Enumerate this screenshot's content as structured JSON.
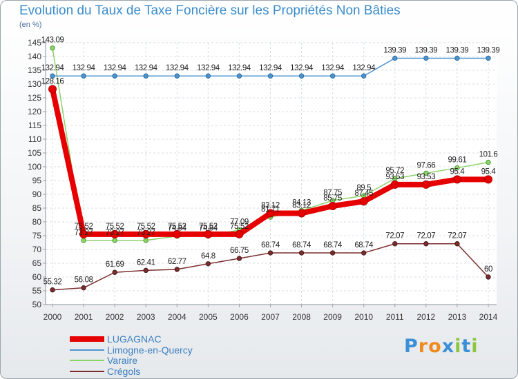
{
  "chart_data": {
    "type": "line",
    "title": "Evolution du Taux de Taxe Foncière sur les Propriétés Non Bâties",
    "ylabel": "(en %)",
    "xlabel": "",
    "ylim": [
      50,
      145
    ],
    "yticks": [
      50,
      55,
      60,
      65,
      70,
      75,
      80,
      85,
      90,
      95,
      100,
      105,
      110,
      115,
      120,
      125,
      130,
      135,
      140,
      145
    ],
    "categories": [
      "2000",
      "2001",
      "2002",
      "2003",
      "2004",
      "2005",
      "2006",
      "2007",
      "2008",
      "2009",
      "2010",
      "2011",
      "2012",
      "2013",
      "2014"
    ],
    "series": [
      {
        "name": "LUGAGNAC",
        "color": "#e60000",
        "values": [
          128.16,
          75.52,
          75.52,
          75.52,
          75.52,
          75.52,
          75.52,
          83.12,
          83.12,
          85.75,
          87.45,
          93.53,
          93.53,
          95.4,
          95.4
        ],
        "labels": [
          "128.16",
          "75.52",
          "75.52",
          "75.52",
          "75.52",
          "75.52",
          "75.52",
          "83.12",
          "83.12",
          "85.75",
          "87.45",
          "93.53",
          "93.53",
          "95.4",
          "95.4"
        ]
      },
      {
        "name": "Limogne-en-Quercy",
        "color": "#4f94cd",
        "values": [
          132.94,
          132.94,
          132.94,
          132.94,
          132.94,
          132.94,
          132.94,
          132.94,
          132.94,
          132.94,
          132.94,
          139.39,
          139.39,
          139.39,
          139.39
        ],
        "labels": [
          "132.94",
          "132.94",
          "132.94",
          "132.94",
          "132.94",
          "132.94",
          "132.94",
          "132.94",
          "132.94",
          "132.94",
          "132.94",
          "139.39",
          "139.39",
          "139.39",
          "139.39"
        ]
      },
      {
        "name": "Varaire",
        "color": "#8cd26a",
        "values": [
          143.09,
          73.27,
          73.27,
          73.27,
          74.84,
          74.84,
          77.09,
          81.71,
          84.13,
          87.75,
          89.5,
          95.72,
          97.66,
          99.61,
          101.6
        ],
        "labels": [
          "143.09",
          "73.27",
          "73.27",
          "73.27",
          "74.84",
          "74.84",
          "77.09",
          "81.71",
          "84.13",
          "87.75",
          "89.5",
          "95.72",
          "97.66",
          "99.61",
          "101.6"
        ]
      },
      {
        "name": "Crégols",
        "color": "#7b2d2d",
        "values": [
          55.32,
          56.08,
          61.69,
          62.41,
          62.77,
          64.8,
          66.75,
          68.74,
          68.74,
          68.74,
          68.74,
          72.07,
          72.07,
          72.07,
          60
        ],
        "labels": [
          "55.32",
          "56.08",
          "61.69",
          "62.41",
          "62.77",
          "64.8",
          "66.75",
          "68.74",
          "68.74",
          "68.74",
          "68.74",
          "72.07",
          "72.07",
          "72.07",
          "60"
        ]
      }
    ]
  },
  "logo": {
    "letters": [
      "P",
      "r",
      "o",
      "x",
      "i",
      "t",
      "i"
    ],
    "colors": [
      "#3b8fd6",
      "#f08a1e",
      "#f08a1e",
      "#3b8fd6",
      "#8cc63f",
      "#3b8fd6",
      "#8cc63f"
    ]
  }
}
